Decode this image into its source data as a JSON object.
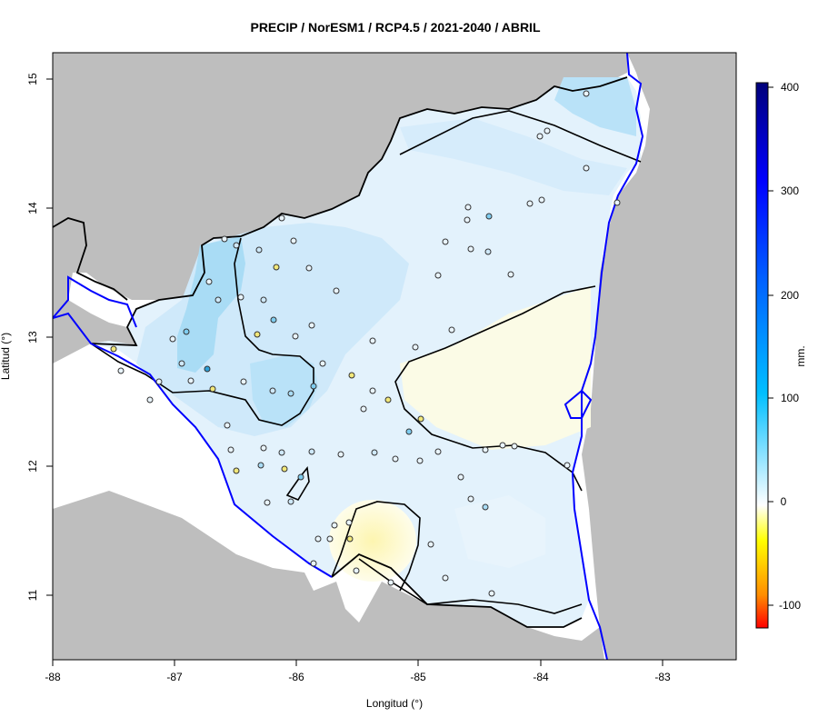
{
  "title": "PRECIP / NorESM1 / RCP4.5 / 2021-2040 / ABRIL",
  "x_axis": {
    "label": "Longitud (°)",
    "ticks": [
      "-88",
      "-87",
      "-86",
      "-85",
      "-84",
      "-83"
    ]
  },
  "y_axis": {
    "label": "Latitud (°)",
    "ticks": [
      "15",
      "14",
      "13",
      "12",
      "11"
    ]
  },
  "colorbar": {
    "label": "mm.",
    "ticks": [
      "400",
      "300",
      "200",
      "100",
      "0",
      "-100"
    ]
  },
  "colors": {
    "land_outside": "#bebebe",
    "sea": "#ffffff",
    "coastline": "#0000ff",
    "border": "#000000",
    "light_blue": "#cfe9fa",
    "mid_blue": "#a9dcf5",
    "pale_yellow": "#fbfbe0",
    "yellow": "#fcf7b8"
  },
  "chart_data": {
    "type": "heatmap",
    "title": "PRECIP / NorESM1 / RCP4.5 / 2021-2040 / ABRIL",
    "xlabel": "Longitud (°)",
    "ylabel": "Latitud (°)",
    "xlim": [
      -88,
      -82.4
    ],
    "ylim": [
      10.5,
      15.2
    ],
    "colorbar_range": [
      -120,
      405
    ],
    "colorbar_label": "mm.",
    "stations": [
      {
        "lon": -86.7,
        "lat": 13.7
      },
      {
        "lon": -86.5,
        "lat": 13.5
      },
      {
        "lon": -86.3,
        "lat": 13.3
      },
      {
        "lon": -86.1,
        "lat": 13.2
      },
      {
        "lon": -85.9,
        "lat": 13.1
      },
      {
        "lon": -85.7,
        "lat": 13.0
      },
      {
        "lon": -86.0,
        "lat": 12.8
      },
      {
        "lon": -86.2,
        "lat": 12.5
      },
      {
        "lon": -85.6,
        "lat": 12.4
      },
      {
        "lon": -85.4,
        "lat": 12.6
      },
      {
        "lon": -85.2,
        "lat": 12.2
      },
      {
        "lon": -84.9,
        "lat": 12.0
      },
      {
        "lon": -84.6,
        "lat": 11.8
      },
      {
        "lon": -85.5,
        "lat": 11.4
      },
      {
        "lon": -84.4,
        "lat": 13.7
      },
      {
        "lon": -84.0,
        "lat": 14.5
      },
      {
        "lon": -83.9,
        "lat": 13.2
      },
      {
        "lon": -87.0,
        "lat": 13.0
      },
      {
        "lon": -87.4,
        "lat": 12.6
      },
      {
        "lon": -86.5,
        "lat": 12.1
      }
    ]
  }
}
